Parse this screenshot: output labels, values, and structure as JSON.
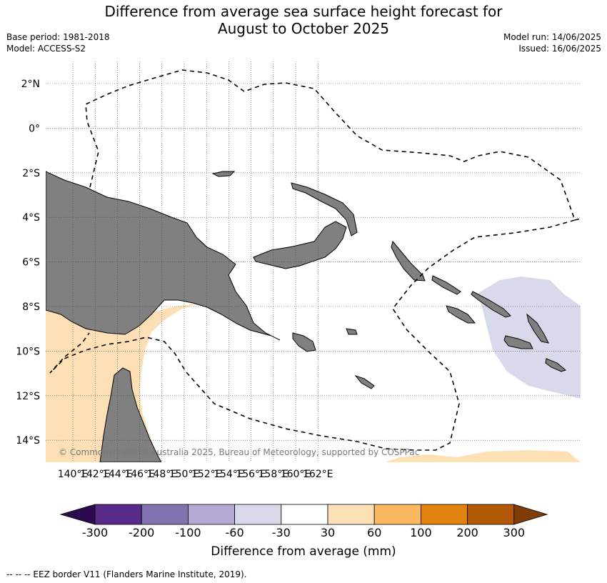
{
  "header": {
    "title_line1": "Difference from average sea surface height forecast for",
    "title_line2": "August to October 2025",
    "base_period": "Base period: 1981-2018",
    "model": "Model: ACCESS-S2",
    "model_run": "Model run: 14/06/2025",
    "issued": "Issued: 16/06/2025"
  },
  "map": {
    "lon_ticks": [
      "140°E",
      "142°E",
      "144°E",
      "146°E",
      "148°E",
      "150°E",
      "152°E",
      "154°E",
      "156°E",
      "158°E",
      "160°E",
      "162°E"
    ],
    "lat_ticks": [
      "2°N",
      "0°",
      "2°S",
      "4°S",
      "6°S",
      "8°S",
      "10°S",
      "12°S",
      "14°S"
    ],
    "lon_range": [
      139,
      163
    ],
    "lat_range": [
      -15,
      3
    ],
    "grid": true,
    "copyright": "© Commonwealth of Australia 2025, Bureau of Meteorology, supported by COSPPac",
    "colors": {
      "land": "#808080",
      "positive_30_60": "#fde0b6",
      "negative_60_30": "#d8d9ea",
      "eez_border": "#000000"
    }
  },
  "colorbar": {
    "label": "Difference from average (mm)",
    "ticks": [
      "-300",
      "-200",
      "-100",
      "-60",
      "-30",
      "30",
      "60",
      "100",
      "200",
      "300"
    ],
    "colors": [
      "#2d0a4f",
      "#5a2a8a",
      "#8072af",
      "#b2aad3",
      "#d8d9ea",
      "#ffffff",
      "#fde0b6",
      "#fbb862",
      "#e2820f",
      "#b35806",
      "#7f3b08"
    ]
  },
  "footnote": "--  --  -- EEZ border V11 (Flanders Marine Institute, 2019)."
}
